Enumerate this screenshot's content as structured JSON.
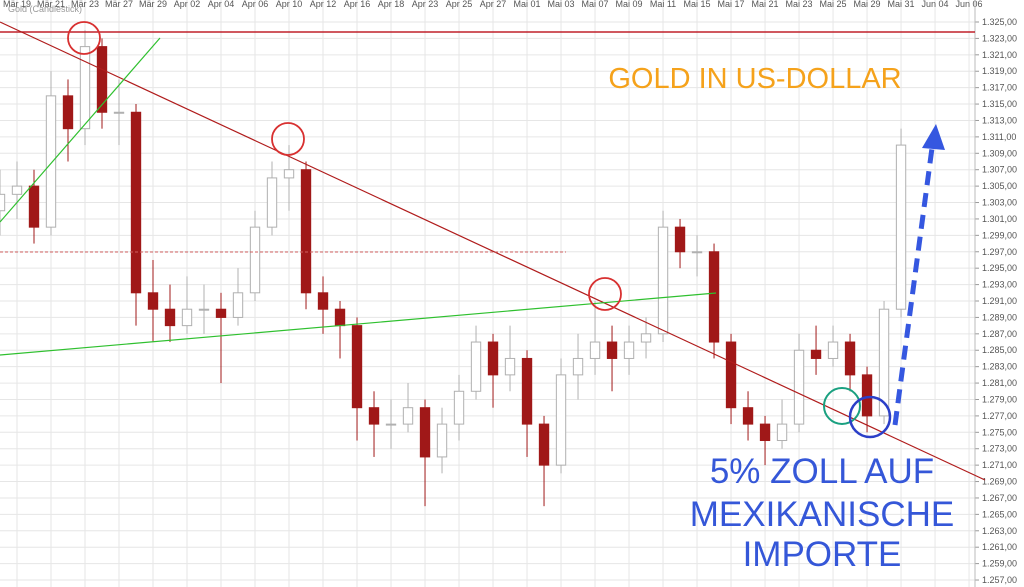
{
  "chart_data": {
    "type": "candlestick",
    "title": "Gold (Candlestick)",
    "annotations": [
      "GOLD IN US-DOLLAR",
      "5% ZOLL AUF",
      "MEXIKANISCHE",
      "IMPORTE"
    ],
    "up_color": "#b0b0b0",
    "down_color": "#a01818",
    "grid": true,
    "xlim": [
      -1,
      56.35
    ],
    "ylim": [
      1256.15,
      1327.68
    ],
    "xticks": [
      {
        "value": 0,
        "label": "Mär 19"
      },
      {
        "value": 2,
        "label": "Mär 21"
      },
      {
        "value": 4,
        "label": "Mär 23"
      },
      {
        "value": 6,
        "label": "Mär 27"
      },
      {
        "value": 8,
        "label": "Mär 29"
      },
      {
        "value": 10,
        "label": "Apr 02"
      },
      {
        "value": 12,
        "label": "Apr 04"
      },
      {
        "value": 14,
        "label": "Apr 06"
      },
      {
        "value": 16,
        "label": "Apr 10"
      },
      {
        "value": 18,
        "label": "Apr 12"
      },
      {
        "value": 20,
        "label": "Apr 16"
      },
      {
        "value": 22,
        "label": "Apr 18"
      },
      {
        "value": 24,
        "label": "Apr 23"
      },
      {
        "value": 26,
        "label": "Apr 25"
      },
      {
        "value": 28,
        "label": "Apr 27"
      },
      {
        "value": 30,
        "label": "Mai 01"
      },
      {
        "value": 32,
        "label": "Mai 03"
      },
      {
        "value": 34,
        "label": "Mai 07"
      },
      {
        "value": 36,
        "label": "Mai 09"
      },
      {
        "value": 38,
        "label": "Mai 11"
      },
      {
        "value": 40,
        "label": "Mai 15"
      },
      {
        "value": 42,
        "label": "Mai 17"
      },
      {
        "value": 44,
        "label": "Mai 21"
      },
      {
        "value": 46,
        "label": "Mai 23"
      },
      {
        "value": 48,
        "label": "Mai 25"
      },
      {
        "value": 50,
        "label": "Mai 29"
      },
      {
        "value": 52,
        "label": "Mai 31"
      },
      {
        "value": 54,
        "label": "Jun 04"
      },
      {
        "value": 56,
        "label": "Jun 06"
      }
    ],
    "yticks": [
      {
        "value": 1257,
        "label": "1.257,00"
      },
      {
        "value": 1259,
        "label": "1.259,00"
      },
      {
        "value": 1261,
        "label": "1.261,00"
      },
      {
        "value": 1263,
        "label": "1.263,00"
      },
      {
        "value": 1265,
        "label": "1.265,00"
      },
      {
        "value": 1267,
        "label": "1.267,00"
      },
      {
        "value": 1269,
        "label": "1.269,00"
      },
      {
        "value": 1271,
        "label": "1.271,00"
      },
      {
        "value": 1273,
        "label": "1.273,00"
      },
      {
        "value": 1275,
        "label": "1.275,00"
      },
      {
        "value": 1277,
        "label": "1.277,00"
      },
      {
        "value": 1279,
        "label": "1.279,00"
      },
      {
        "value": 1281,
        "label": "1.281,00"
      },
      {
        "value": 1283,
        "label": "1.283,00"
      },
      {
        "value": 1285,
        "label": "1.285,00"
      },
      {
        "value": 1287,
        "label": "1.287,00"
      },
      {
        "value": 1289,
        "label": "1.289,00"
      },
      {
        "value": 1291,
        "label": "1.291,00"
      },
      {
        "value": 1293,
        "label": "1.293,00"
      },
      {
        "value": 1295,
        "label": "1.295,00"
      },
      {
        "value": 1297,
        "label": "1.297,00"
      },
      {
        "value": 1299,
        "label": "1.299,00"
      },
      {
        "value": 1301,
        "label": "1.301,00"
      },
      {
        "value": 1303,
        "label": "1.303,00"
      },
      {
        "value": 1305,
        "label": "1.305,00"
      },
      {
        "value": 1307,
        "label": "1.307,00"
      },
      {
        "value": 1309,
        "label": "1.309,00"
      },
      {
        "value": 1311,
        "label": "1.311,00"
      },
      {
        "value": 1313,
        "label": "1.313,00"
      },
      {
        "value": 1315,
        "label": "1.315,00"
      },
      {
        "value": 1317,
        "label": "1.317,00"
      },
      {
        "value": 1319,
        "label": "1.319,00"
      },
      {
        "value": 1321,
        "label": "1.321,00"
      },
      {
        "value": 1323,
        "label": "1.323,00"
      },
      {
        "value": 1325,
        "label": "1.325,00"
      }
    ],
    "x": [
      -1,
      0,
      1,
      2,
      3,
      4,
      5,
      6,
      7,
      8,
      9,
      10,
      11,
      12,
      13,
      14,
      15,
      16,
      17,
      18,
      19,
      20,
      21,
      22,
      23,
      24,
      25,
      26,
      27,
      28,
      29,
      30,
      31,
      32,
      33,
      34,
      35,
      36,
      37,
      38,
      39,
      40,
      41,
      42,
      43,
      44,
      45,
      46,
      47,
      48,
      49,
      50,
      51,
      52
    ],
    "open": [
      1302,
      1304,
      1305,
      1300,
      1316,
      1312,
      1322,
      1314,
      1314,
      1292,
      1290,
      1288,
      1290,
      1290,
      1289,
      1292,
      1300,
      1306,
      1307,
      1292,
      1290,
      1288,
      1278,
      1276,
      1276,
      1278,
      1272,
      1276,
      1280,
      1286,
      1282,
      1284,
      1276,
      1271,
      1282,
      1284,
      1286,
      1284,
      1286,
      1287,
      1300,
      1297,
      1297,
      1286,
      1278,
      1276,
      1274,
      1276,
      1285,
      1284,
      1286,
      1282,
      1277,
      1290
    ],
    "high": [
      1307,
      1308,
      1307,
      1319,
      1318,
      1324,
      1323,
      1318,
      1315,
      1296,
      1293,
      1294,
      1293,
      1292,
      1295,
      1302,
      1308,
      1310,
      1308,
      1294,
      1291,
      1289,
      1280,
      1279,
      1281,
      1279,
      1278,
      1282,
      1288,
      1287,
      1288,
      1285,
      1277,
      1284,
      1287,
      1291,
      1288,
      1288,
      1289,
      1302,
      1301,
      1299,
      1298,
      1287,
      1280,
      1277,
      1279,
      1287,
      1288,
      1288,
      1287,
      1283,
      1291,
      1312
    ],
    "low": [
      1299,
      1301,
      1298,
      1299,
      1308,
      1310,
      1312,
      1310,
      1288,
      1286,
      1286,
      1287,
      1287,
      1281,
      1288,
      1291,
      1299,
      1302,
      1290,
      1287,
      1284,
      1274,
      1272,
      1273,
      1275,
      1266,
      1270,
      1274,
      1279,
      1278,
      1280,
      1272,
      1266,
      1270,
      1279,
      1282,
      1280,
      1282,
      1284,
      1286,
      1295,
      1294,
      1284,
      1276,
      1274,
      1271,
      1273,
      1275,
      1282,
      1283,
      1280,
      1275,
      1276,
      1289
    ],
    "close": [
      1304,
      1305,
      1300,
      1316,
      1312,
      1322,
      1314,
      1314,
      1292,
      1290,
      1288,
      1290,
      1290,
      1289,
      1292,
      1300,
      1306,
      1307,
      1292,
      1290,
      1288,
      1278,
      1276,
      1276,
      1278,
      1272,
      1276,
      1280,
      1286,
      1282,
      1284,
      1276,
      1271,
      1282,
      1284,
      1286,
      1284,
      1286,
      1287,
      1300,
      1297,
      1297,
      1286,
      1278,
      1276,
      1274,
      1276,
      1285,
      1284,
      1286,
      1282,
      1277,
      1290,
      1310
    ]
  }
}
